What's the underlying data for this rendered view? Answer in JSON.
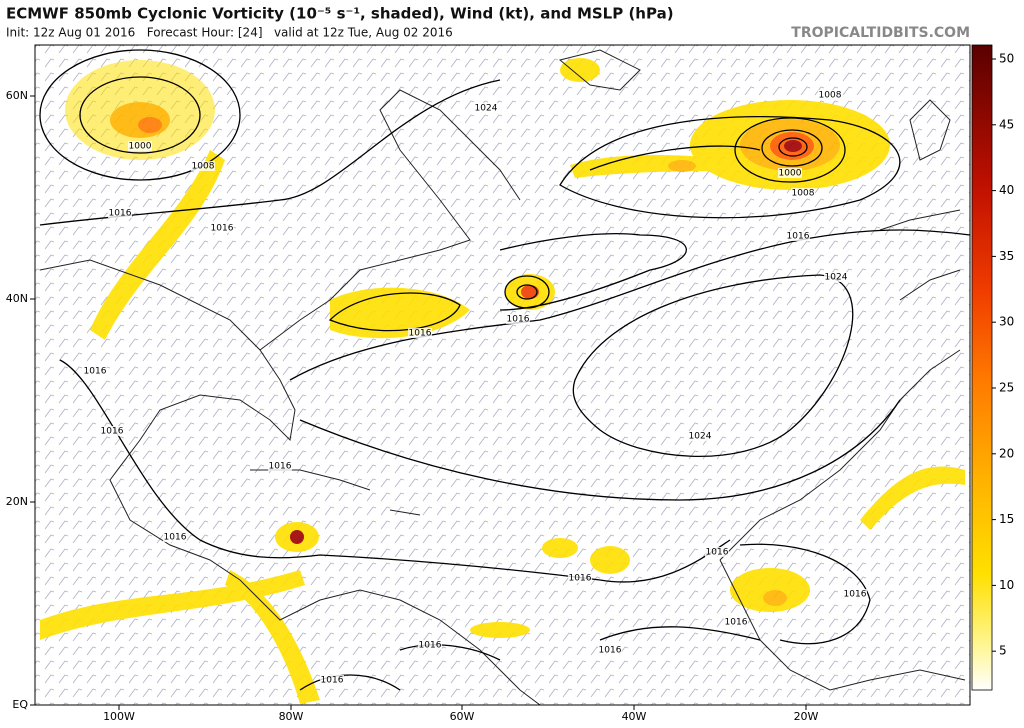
{
  "header": {
    "title": "ECMWF 850mb Cyclonic Vorticity (10⁻⁵ s⁻¹, shaded), Wind (kt), and MSLP (hPa)",
    "subtitle": "Init: 12z Aug 01 2016   Forecast Hour: [24]   valid at 12z Tue, Aug 02 2016",
    "site": "TROPICALTIDBITS.COM"
  },
  "map": {
    "lat_labels": [
      "60N",
      "40N",
      "20N",
      "EQ"
    ],
    "lon_labels": [
      "100W",
      "80W",
      "60W",
      "40W",
      "20W"
    ],
    "isobar_labels": [
      "1024",
      "1008",
      "1000",
      "1008",
      "1016",
      "1016",
      "1000",
      "1008",
      "1016",
      "1024",
      "1016",
      "1016",
      "1016",
      "1016",
      "1024",
      "1016",
      "1016",
      "1016",
      "1016",
      "1016",
      "1016",
      "1016",
      "1016",
      "1016"
    ]
  },
  "colorbar": {
    "ticks": [
      "50",
      "45",
      "40",
      "35",
      "30",
      "25",
      "20",
      "15",
      "10",
      "5"
    ]
  }
}
